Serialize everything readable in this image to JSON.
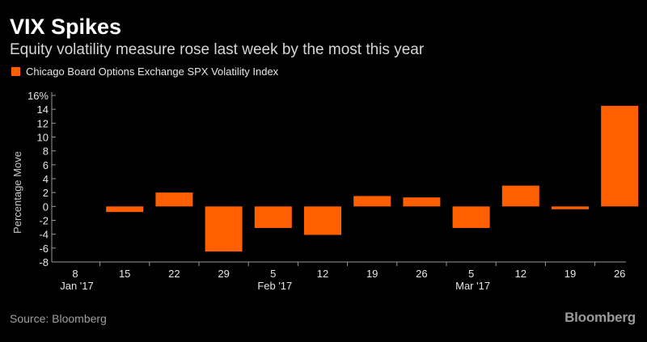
{
  "header": {
    "title": "VIX Spikes",
    "subtitle": "Equity volatility measure rose last week by the most this year"
  },
  "footer": {
    "source": "Source: Bloomberg",
    "brand": "Bloomberg"
  },
  "colors": {
    "bar": "#ff5f00",
    "background": "#000000",
    "axis": "#9a9a9a"
  },
  "chart_data": {
    "type": "bar",
    "title": "VIX Spikes",
    "subtitle": "Equity volatility measure rose last week by the most this year",
    "ylabel": "Percentage Move",
    "xlabel": "",
    "ylim": [
      -8,
      16
    ],
    "yticks": [
      -8,
      -6,
      -4,
      -2,
      0,
      2,
      4,
      6,
      8,
      10,
      12,
      14,
      16
    ],
    "ytick_labels": [
      "-8",
      "-6",
      "-4",
      "-2",
      "0",
      "2",
      "4",
      "6",
      "8",
      "10",
      "12",
      "14",
      "16%"
    ],
    "grid": false,
    "legend": "top-left",
    "categories": [
      "8",
      "15",
      "22",
      "29",
      "5",
      "12",
      "19",
      "26",
      "5",
      "12",
      "19",
      "26"
    ],
    "month_labels": [
      {
        "label": "Jan '17",
        "index": 0
      },
      {
        "label": "Feb '17",
        "index": 4
      },
      {
        "label": "Mar '17",
        "index": 8
      }
    ],
    "series": [
      {
        "name": "Chicago Board Options Exchange SPX Volatility Index",
        "values": [
          0,
          -0.8,
          2.0,
          -6.5,
          -3.1,
          -4.1,
          1.5,
          1.3,
          -3.1,
          3.0,
          -0.4,
          14.5
        ]
      }
    ]
  }
}
